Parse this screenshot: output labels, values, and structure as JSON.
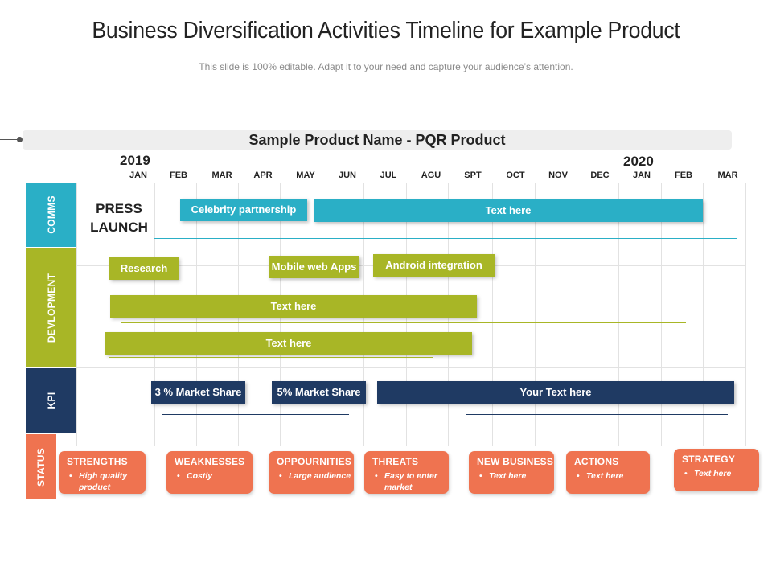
{
  "title": "Business Diversification Activities Timeline for Example Product",
  "subtitle": "This slide is 100% editable. Adapt it to your need and capture your audience’s attention.",
  "product_label": "Sample Product Name -  PQR Product",
  "years": [
    "2019",
    "2020"
  ],
  "months": [
    "JAN",
    "FEB",
    "MAR",
    "APR",
    "MAY",
    "JUN",
    "JUL",
    "AGU",
    "SPT",
    "OCT",
    "NOV",
    "DEC",
    "JAN",
    "FEB",
    "MAR"
  ],
  "categories": {
    "comms": "COMMS",
    "development": "DEVLOPMENT",
    "kpi": "KPI",
    "status": "STATUS"
  },
  "colors": {
    "comms": "#2aafc6",
    "development": "#a8b626",
    "kpi": "#1f3a63",
    "status": "#ef7350"
  },
  "comms": {
    "press_launch_line1": "PRESS",
    "press_launch_line2": "LAUNCH",
    "celebrity": "Celebrity partnership",
    "text_here": "Text here"
  },
  "development": {
    "research": "Research",
    "mobile_web": "Mobile web Apps",
    "android": "Android integration",
    "text_here_1": "Text here",
    "text_here_2": "Text here"
  },
  "kpi": {
    "market_3": "3 % Market Share",
    "market_5": "5% Market Share",
    "your_text": "Your Text here"
  },
  "status_cards": [
    {
      "heading": "STRENGTHS",
      "body": "High quality product"
    },
    {
      "heading": "WEAKNESSES",
      "body": "Costly"
    },
    {
      "heading": "OPPOURNITIES",
      "body": "Large audience"
    },
    {
      "heading": "THREATS",
      "body": "Easy to enter market"
    },
    {
      "heading": "NEW BUSINESS",
      "body": "Text here"
    },
    {
      "heading": "ACTIONS",
      "body": "Text here"
    },
    {
      "heading": "STRATEGY",
      "body": "Text here"
    }
  ]
}
